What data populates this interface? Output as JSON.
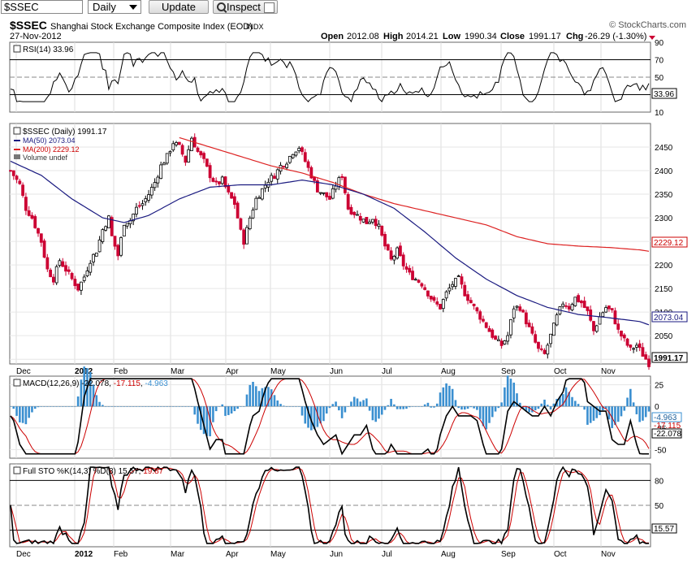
{
  "toolbar": {
    "symbol_value": "$SSEC",
    "period_value": "Daily",
    "update_label": "Update",
    "inspect_label": "Inspect"
  },
  "header": {
    "symbol": "$SSEC",
    "name": "Shanghai Stock Exchange Composite Index (EOD)",
    "exchange": "INDX",
    "date": "27-Nov-2012",
    "brand": "© StockCharts.com",
    "open_label": "Open",
    "open_value": "2012.08",
    "high_label": "High",
    "high_value": "2014.21",
    "low_label": "Low",
    "low_value": "1990.34",
    "close_label": "Close",
    "close_value": "1991.17",
    "chg_label": "Chg",
    "chg_value": "-26.29 (-1.30%)"
  },
  "colors": {
    "up": "#000000",
    "down": "#cc0033",
    "ma50": "#1a1a80",
    "ma200": "#dd2222",
    "macd_hist": "#3a8fd0",
    "signal": "#cc0000",
    "grid": "#d8d8d8"
  },
  "x_axis": {
    "labels": [
      "Dec",
      "2012",
      "Feb",
      "Mar",
      "Apr",
      "May",
      "Jun",
      "Jul",
      "Aug",
      "Sep",
      "Oct",
      "Nov"
    ]
  },
  "chart_data": [
    {
      "panel": "rsi",
      "type": "line",
      "legend": "RSI(14) 33.96",
      "current_label": "33.96",
      "ylim": [
        10,
        90
      ],
      "ticks": [
        "90",
        "70",
        "50",
        "30",
        "10"
      ],
      "lines": [
        70,
        30
      ]
    },
    {
      "panel": "price",
      "type": "ohlc",
      "legend": [
        "$SSEC (Daily) 1991.17",
        "MA(50) 2073.04",
        "MA(200) 2229.12",
        "Volume undef"
      ],
      "ylim": [
        1990,
        2500
      ],
      "ticks": [
        "2450",
        "2400",
        "2350",
        "2300",
        "2250",
        "2200",
        "2150",
        "2100",
        "2050",
        "2000"
      ],
      "current_labels": {
        "close": "1991.17",
        "ma50": "2073.04",
        "ma200": "2229.12"
      },
      "close_path": [
        [
          0,
          2400
        ],
        [
          3,
          2370
        ],
        [
          5,
          2320
        ],
        [
          7,
          2300
        ],
        [
          10,
          2250
        ],
        [
          12,
          2190
        ],
        [
          14,
          2170
        ],
        [
          16,
          2210
        ],
        [
          18,
          2190
        ],
        [
          20,
          2170
        ],
        [
          22,
          2150
        ],
        [
          24,
          2175
        ],
        [
          26,
          2210
        ],
        [
          28,
          2230
        ],
        [
          30,
          2275
        ],
        [
          32,
          2300
        ],
        [
          33,
          2260
        ],
        [
          35,
          2220
        ],
        [
          37,
          2290
        ],
        [
          39,
          2295
        ],
        [
          41,
          2320
        ],
        [
          43,
          2330
        ],
        [
          45,
          2350
        ],
        [
          47,
          2375
        ],
        [
          49,
          2410
        ],
        [
          51,
          2430
        ],
        [
          53,
          2460
        ],
        [
          55,
          2450
        ],
        [
          57,
          2420
        ],
        [
          59,
          2470
        ],
        [
          61,
          2440
        ],
        [
          63,
          2420
        ],
        [
          65,
          2390
        ],
        [
          67,
          2370
        ],
        [
          69,
          2380
        ],
        [
          71,
          2350
        ],
        [
          73,
          2330
        ],
        [
          75,
          2270
        ],
        [
          76,
          2250
        ],
        [
          78,
          2300
        ],
        [
          80,
          2340
        ],
        [
          82,
          2360
        ],
        [
          84,
          2380
        ],
        [
          86,
          2390
        ],
        [
          88,
          2410
        ],
        [
          90,
          2420
        ],
        [
          92,
          2440
        ],
        [
          94,
          2450
        ],
        [
          96,
          2420
        ],
        [
          98,
          2390
        ],
        [
          100,
          2360
        ],
        [
          102,
          2350
        ],
        [
          104,
          2340
        ],
        [
          106,
          2370
        ],
        [
          108,
          2390
        ],
        [
          110,
          2320
        ],
        [
          112,
          2310
        ],
        [
          114,
          2300
        ],
        [
          116,
          2290
        ],
        [
          118,
          2300
        ],
        [
          120,
          2280
        ],
        [
          122,
          2240
        ],
        [
          124,
          2210
        ],
        [
          126,
          2230
        ],
        [
          128,
          2200
        ],
        [
          130,
          2180
        ],
        [
          132,
          2170
        ],
        [
          134,
          2160
        ],
        [
          136,
          2140
        ],
        [
          138,
          2120
        ],
        [
          140,
          2110
        ],
        [
          142,
          2140
        ],
        [
          144,
          2160
        ],
        [
          146,
          2170
        ],
        [
          148,
          2140
        ],
        [
          150,
          2120
        ],
        [
          152,
          2100
        ],
        [
          154,
          2080
        ],
        [
          156,
          2060
        ],
        [
          158,
          2040
        ],
        [
          160,
          2030
        ],
        [
          162,
          2050
        ],
        [
          164,
          2110
        ],
        [
          166,
          2110
        ],
        [
          168,
          2080
        ],
        [
          170,
          2050
        ],
        [
          172,
          2020
        ],
        [
          174,
          2010
        ],
        [
          176,
          2050
        ],
        [
          178,
          2090
        ],
        [
          180,
          2120
        ],
        [
          182,
          2110
        ],
        [
          184,
          2130
        ],
        [
          186,
          2120
        ],
        [
          188,
          2100
        ],
        [
          190,
          2060
        ],
        [
          192,
          2090
        ],
        [
          194,
          2110
        ],
        [
          196,
          2100
        ],
        [
          198,
          2060
        ],
        [
          200,
          2040
        ],
        [
          202,
          2020
        ],
        [
          204,
          2030
        ],
        [
          206,
          2010
        ],
        [
          208,
          1991
        ]
      ],
      "ma50_path": [
        [
          0,
          2420
        ],
        [
          10,
          2390
        ],
        [
          20,
          2340
        ],
        [
          30,
          2300
        ],
        [
          37,
          2290
        ],
        [
          45,
          2305
        ],
        [
          55,
          2340
        ],
        [
          65,
          2365
        ],
        [
          75,
          2370
        ],
        [
          85,
          2370
        ],
        [
          95,
          2380
        ],
        [
          105,
          2370
        ],
        [
          115,
          2350
        ],
        [
          125,
          2320
        ],
        [
          135,
          2270
        ],
        [
          145,
          2215
        ],
        [
          155,
          2170
        ],
        [
          165,
          2135
        ],
        [
          175,
          2110
        ],
        [
          185,
          2095
        ],
        [
          195,
          2088
        ],
        [
          205,
          2080
        ],
        [
          208,
          2073
        ]
      ],
      "ma200_path": [
        [
          55,
          2470
        ],
        [
          65,
          2450
        ],
        [
          75,
          2430
        ],
        [
          85,
          2410
        ],
        [
          95,
          2395
        ],
        [
          105,
          2375
        ],
        [
          115,
          2350
        ],
        [
          125,
          2330
        ],
        [
          135,
          2315
        ],
        [
          145,
          2300
        ],
        [
          155,
          2285
        ],
        [
          165,
          2260
        ],
        [
          175,
          2245
        ],
        [
          185,
          2240
        ],
        [
          195,
          2237
        ],
        [
          205,
          2232
        ],
        [
          208,
          2229
        ]
      ]
    },
    {
      "panel": "macd",
      "type": "line",
      "legend_prefix": "MACD(12,26,9)",
      "macd_value": "-22.078",
      "signal_value": "-17.115",
      "hist_value": "-4.963",
      "ylim": [
        -60,
        35
      ],
      "ticks": [
        "25",
        "0",
        "-25",
        "-50"
      ],
      "current_labels": [
        "-4.963",
        "-17.115",
        "-22.078"
      ]
    },
    {
      "panel": "sto",
      "type": "line",
      "legend_prefix": "Full STO %K(14,3) %D(3)",
      "k_value": "15.57",
      "d_value": "19.87",
      "ylim": [
        0,
        100
      ],
      "ticks": [
        "80",
        "50",
        "20"
      ],
      "current_label": "15.57"
    }
  ]
}
